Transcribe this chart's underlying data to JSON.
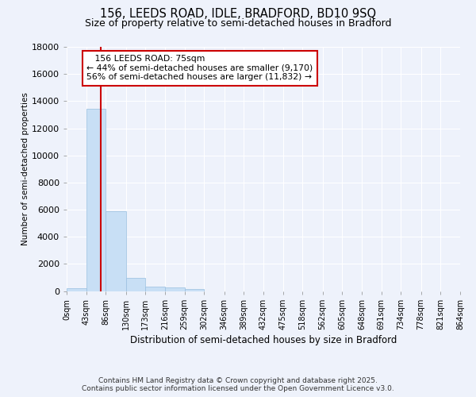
{
  "title_line1": "156, LEEDS ROAD, IDLE, BRADFORD, BD10 9SQ",
  "title_line2": "Size of property relative to semi-detached houses in Bradford",
  "xlabel": "Distribution of semi-detached houses by size in Bradford",
  "ylabel": "Number of semi-detached properties",
  "property_label": "156 LEEDS ROAD: 75sqm",
  "pct_smaller": 44,
  "pct_larger": 56,
  "n_smaller": 9170,
  "n_larger": 11832,
  "bin_edges": [
    0,
    43,
    86,
    130,
    173,
    216,
    259,
    302,
    346,
    389,
    432,
    475,
    518,
    562,
    605,
    648,
    691,
    734,
    778,
    821,
    864
  ],
  "bin_counts": [
    200,
    13450,
    5900,
    970,
    330,
    250,
    130,
    0,
    0,
    0,
    0,
    0,
    0,
    0,
    0,
    0,
    0,
    0,
    0,
    0
  ],
  "bar_color": "#c8dff5",
  "bar_edge_color": "#99bfe0",
  "vline_color": "#cc0000",
  "vline_x": 75,
  "annotation_box_color": "#ffffff",
  "annotation_box_edge": "#cc0000",
  "ylim": [
    0,
    18000
  ],
  "yticks": [
    0,
    2000,
    4000,
    6000,
    8000,
    10000,
    12000,
    14000,
    16000,
    18000
  ],
  "background_color": "#eef2fb",
  "grid_color": "#ffffff",
  "footer_line1": "Contains HM Land Registry data © Crown copyright and database right 2025.",
  "footer_line2": "Contains public sector information licensed under the Open Government Licence v3.0."
}
